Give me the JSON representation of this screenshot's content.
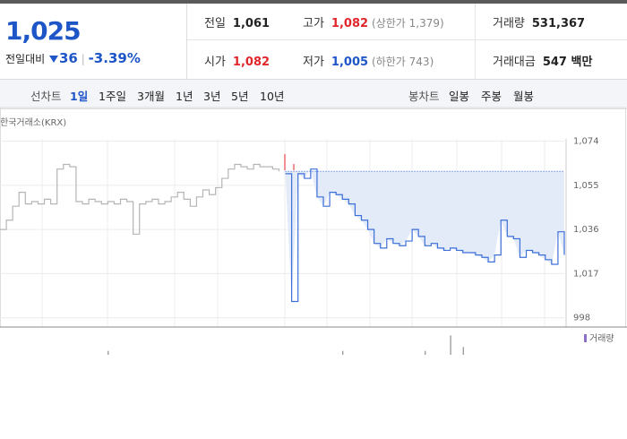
{
  "header": {
    "price": "1,025",
    "change_label": "전일대비",
    "change": "36",
    "change_rate": "-3.39%",
    "stats": [
      {
        "label": "전일",
        "value": "1,061"
      },
      {
        "label": "고가",
        "value": "1,082",
        "note": "(상한가 1,379)"
      },
      {
        "label": "거래량",
        "value": "531,367"
      },
      {
        "label": "시가",
        "value": "1,082"
      },
      {
        "label": "저가",
        "value": "1,005",
        "note": "(하한가 743)"
      },
      {
        "label": "거래대금",
        "value": "547 백만"
      }
    ]
  },
  "tabs": {
    "line_label": "선차트",
    "line": [
      "1일",
      "1주일",
      "3개월",
      "1년",
      "3년",
      "5년",
      "10년"
    ],
    "active": 0,
    "candle_label": "봉차트",
    "candle": [
      "일봉",
      "주봉",
      "월봉"
    ]
  },
  "chart_data": {
    "type": "line",
    "source": "한국거래소(KRX)",
    "ylim": [
      994,
      1075
    ],
    "yticks": [
      {
        "value": 998,
        "label": "998"
      },
      {
        "value": 1017,
        "label": "1,017"
      },
      {
        "value": 1036,
        "label": "1,036"
      },
      {
        "value": 1055,
        "label": "1,055"
      },
      {
        "value": 1074,
        "label": "1,074"
      }
    ],
    "reference": 1061,
    "reference_color": "#2a5bd7",
    "series": [
      {
        "color": "#b5b5b5",
        "values": [
          1036,
          1040,
          1046,
          1052,
          1047,
          1048,
          1047,
          1049,
          1047,
          1062,
          1064,
          1063,
          1048,
          1047,
          1049,
          1048,
          1047,
          1048,
          1047,
          1049,
          1048,
          1034,
          1047,
          1048,
          1049,
          1047,
          1048,
          1050,
          1052,
          1049,
          1046,
          1050,
          1053,
          1051,
          1054,
          1058,
          1062,
          1064,
          1063,
          1062,
          1064,
          1063,
          1063,
          1062,
          1061,
          null,
          null,
          null,
          null,
          null,
          null,
          null,
          null,
          null,
          null,
          null,
          null,
          null,
          null,
          null,
          null,
          null,
          null,
          null,
          null,
          null,
          null,
          null,
          null,
          null,
          null,
          null,
          null,
          null,
          null,
          null,
          null,
          null,
          null,
          null,
          null,
          null,
          null,
          null,
          null,
          null,
          null,
          null,
          null,
          null
        ]
      },
      {
        "color": "#3d6fd9",
        "fill": "#e3ebf9",
        "values": [
          null,
          null,
          null,
          null,
          null,
          null,
          null,
          null,
          null,
          null,
          null,
          null,
          null,
          null,
          null,
          null,
          null,
          null,
          null,
          null,
          null,
          null,
          null,
          null,
          null,
          null,
          null,
          null,
          null,
          null,
          null,
          null,
          null,
          null,
          null,
          null,
          null,
          null,
          null,
          null,
          null,
          null,
          null,
          null,
          null,
          1060,
          1005,
          1060,
          1058,
          1062,
          1050,
          1046,
          1052,
          1051,
          1049,
          1047,
          1042,
          1040,
          1036,
          1030,
          1028,
          1032,
          1030,
          1029,
          1031,
          1036,
          1033,
          1029,
          1030,
          1028,
          1027,
          1028,
          1027,
          1026,
          1026,
          1025,
          1024,
          1022,
          1025,
          1040,
          1033,
          1032,
          1024,
          1027,
          1026,
          1025,
          1023,
          1021,
          1035,
          1025
        ]
      }
    ],
    "volume": {
      "name": "거래량",
      "color": "#8a6fc7",
      "ylim": [
        0,
        12000
      ],
      "values": [
        0,
        0,
        0,
        0,
        0,
        0,
        0,
        0,
        0,
        0,
        0,
        0,
        0,
        0,
        0,
        0,
        0,
        2000,
        0,
        0,
        0,
        0,
        0,
        0,
        0,
        0,
        0,
        0,
        0,
        0,
        0,
        0,
        0,
        0,
        0,
        0,
        0,
        0,
        0,
        0,
        0,
        0,
        0,
        0,
        0,
        0,
        0,
        0,
        0,
        0,
        0,
        0,
        0,
        0,
        2000,
        0,
        0,
        0,
        0,
        0,
        0,
        0,
        0,
        0,
        0,
        0,
        0,
        2000,
        0,
        0,
        0,
        10000,
        0,
        4000,
        0,
        0,
        0,
        0,
        0,
        0,
        0,
        0,
        0,
        0,
        0,
        0,
        0,
        0,
        0,
        0
      ]
    }
  }
}
